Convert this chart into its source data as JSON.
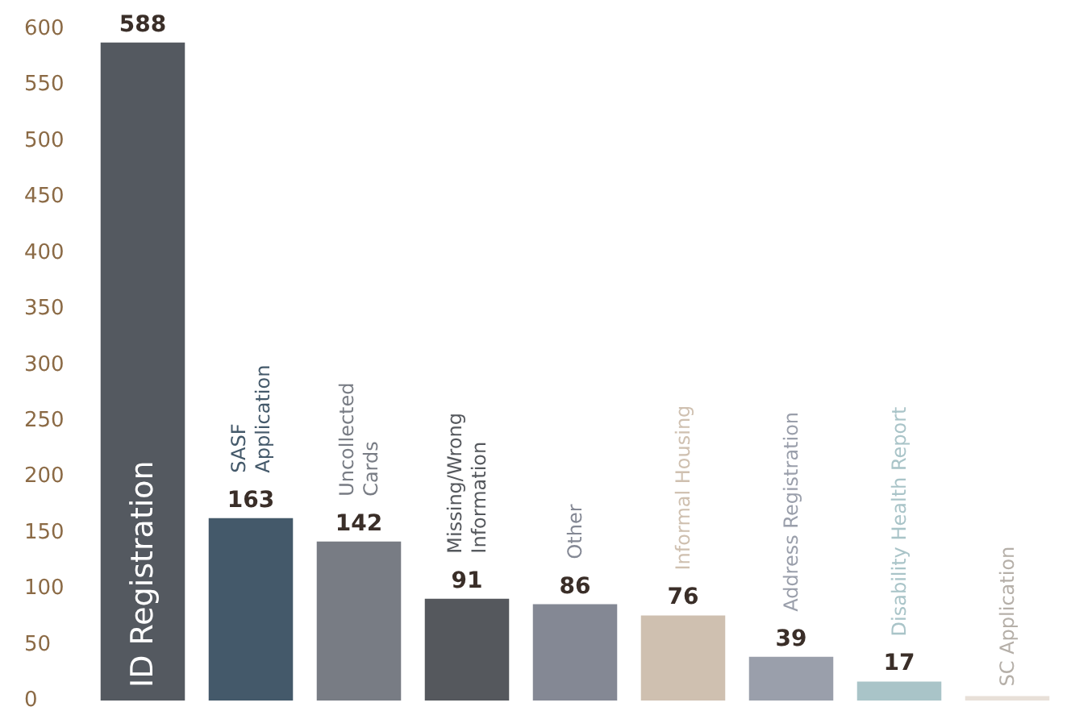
{
  "chart_data": {
    "type": "bar",
    "categories": [
      "ID Registration",
      "SASF\nApplication",
      "Uncollected\nCards",
      "Missing/Wrong\nInformation",
      "Other",
      "Informal Housing",
      "Address Registration",
      "Disability Health Report",
      "SC Application"
    ],
    "values": [
      588,
      163,
      142,
      91,
      86,
      76,
      39,
      17,
      4
    ],
    "colors": [
      "#545960",
      "#44596a",
      "#787c84",
      "#55585d",
      "#848894",
      "#cfc0b0",
      "#9a9fab",
      "#a9c4c8",
      "#e8e0d8"
    ],
    "value_labels": [
      "588",
      "163",
      "142",
      "91",
      "86",
      "76",
      "39",
      "17",
      null
    ],
    "ylim": [
      0,
      600
    ],
    "yticks": [
      0,
      50,
      100,
      150,
      200,
      250,
      300,
      350,
      400,
      450,
      500,
      550,
      600
    ],
    "grid": false
  }
}
